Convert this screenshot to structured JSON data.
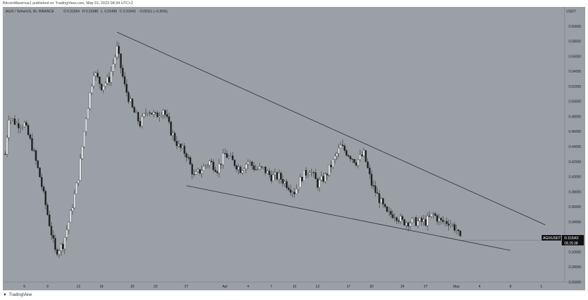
{
  "header": {
    "published": "BitcoinMaximus1 published on TradingView.com, May 01, 2023 08:34 UTC+2"
  },
  "legend": {
    "symbol": "AGIX / TetherUS, 6h, BINANCE",
    "o_label": "O",
    "o_val": "0.31654",
    "h_label": "H",
    "h_val": "0.31680",
    "l_label": "L",
    "l_val": "0.31489",
    "c_label": "C",
    "c_val": "0.31543",
    "change": "−0.00111 (−0.35%)"
  },
  "price_tag": {
    "symbol": "AGIXUSDT",
    "price": "0.31543",
    "countdown": "05:25:38"
  },
  "footer": {
    "brand": "TradingView"
  },
  "colors": {
    "background": "#9aa0a6",
    "candle": "#f5f5f5",
    "wick": "#222222",
    "trendline": "#2b2b2b",
    "tag": "#111111"
  },
  "chart_data": {
    "type": "candlestick",
    "currency_label": "USDT",
    "ylim": [
      0.26,
      0.62
    ],
    "y_ticks": [
      "0.60000",
      "0.58000",
      "0.56000",
      "0.54000",
      "0.52000",
      "0.50000",
      "0.48000",
      "0.46000",
      "0.44000",
      "0.42000",
      "0.40000",
      "0.38000",
      "0.36000",
      "0.34000",
      "0.32000",
      "0.30000",
      "0.28000",
      "0.26000"
    ],
    "x_ticks": [
      "6",
      "9",
      "13",
      "16",
      "20",
      "23",
      "27",
      "Apr",
      "4",
      "7",
      "10",
      "13",
      "17",
      "20",
      "24",
      "27",
      "May",
      "4",
      "8",
      "1"
    ],
    "x_tick_days": [
      6,
      9,
      13,
      16,
      20,
      23,
      27,
      32,
      35,
      38,
      41,
      44,
      48,
      51,
      55,
      58,
      62,
      65,
      69,
      73
    ],
    "xlim_days": [
      3.2,
      76
    ],
    "close_path": [
      [
        3.5,
        0.43
      ],
      [
        4,
        0.48
      ],
      [
        5,
        0.47
      ],
      [
        6,
        0.47
      ],
      [
        7,
        0.44
      ],
      [
        8,
        0.4
      ],
      [
        9,
        0.35
      ],
      [
        10,
        0.3
      ],
      [
        11,
        0.31
      ],
      [
        12,
        0.35
      ],
      [
        13,
        0.4
      ],
      [
        14,
        0.48
      ],
      [
        15,
        0.54
      ],
      [
        16,
        0.52
      ],
      [
        17,
        0.53
      ],
      [
        18,
        0.57
      ],
      [
        19,
        0.52
      ],
      [
        20,
        0.49
      ],
      [
        21,
        0.47
      ],
      [
        22,
        0.49
      ],
      [
        23,
        0.48
      ],
      [
        24,
        0.49
      ],
      [
        25,
        0.46
      ],
      [
        26,
        0.44
      ],
      [
        27,
        0.43
      ],
      [
        28,
        0.4
      ],
      [
        29,
        0.41
      ],
      [
        30,
        0.42
      ],
      [
        31,
        0.41
      ],
      [
        32,
        0.43
      ],
      [
        33,
        0.42
      ],
      [
        34,
        0.41
      ],
      [
        35,
        0.42
      ],
      [
        36,
        0.41
      ],
      [
        37,
        0.41
      ],
      [
        38,
        0.4
      ],
      [
        39,
        0.4
      ],
      [
        40,
        0.39
      ],
      [
        41,
        0.38
      ],
      [
        42,
        0.4
      ],
      [
        43,
        0.41
      ],
      [
        44,
        0.39
      ],
      [
        45,
        0.4
      ],
      [
        46,
        0.42
      ],
      [
        47,
        0.44
      ],
      [
        48,
        0.43
      ],
      [
        49,
        0.42
      ],
      [
        50,
        0.43
      ],
      [
        51,
        0.39
      ],
      [
        52,
        0.37
      ],
      [
        53,
        0.35
      ],
      [
        54,
        0.35
      ],
      [
        55,
        0.34
      ],
      [
        56,
        0.34
      ],
      [
        57,
        0.34
      ],
      [
        58,
        0.34
      ],
      [
        59,
        0.35
      ],
      [
        60,
        0.34
      ],
      [
        61,
        0.34
      ],
      [
        62,
        0.33
      ],
      [
        62.5,
        0.3154
      ]
    ],
    "trendlines": [
      {
        "name": "resistance",
        "points": [
          [
            18,
            0.592
          ],
          [
            73.5,
            0.336
          ]
        ]
      },
      {
        "name": "support",
        "points": [
          [
            27,
            0.388
          ],
          [
            69,
            0.302
          ]
        ]
      }
    ]
  }
}
